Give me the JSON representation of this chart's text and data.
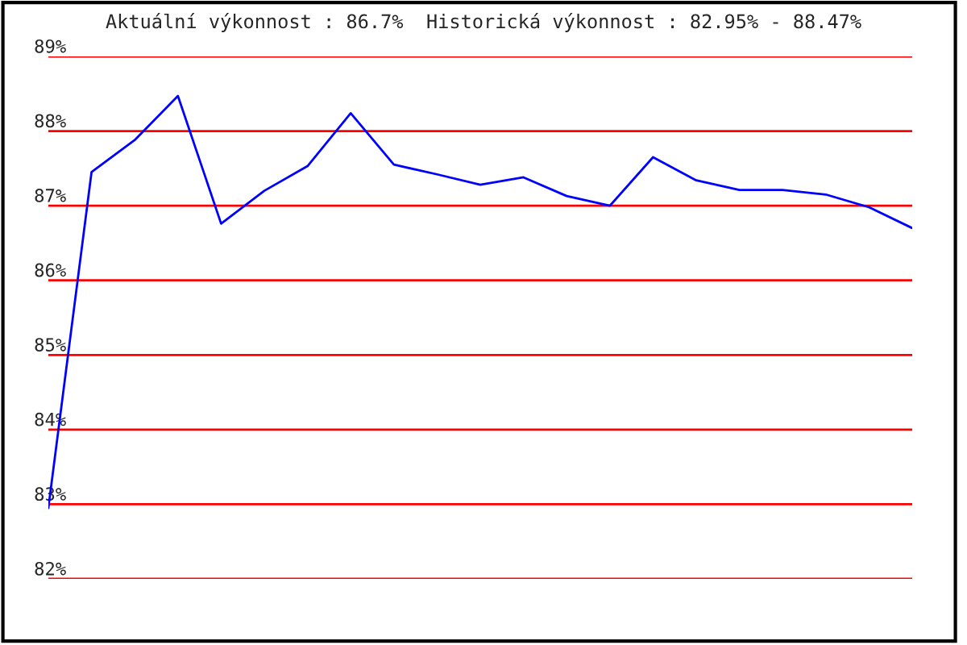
{
  "chart_data": {
    "type": "line",
    "title": "Aktuální výkonnost : 86.7%  Historická výkonnost : 82.95% - 88.47%",
    "categories": [
      null,
      null,
      null,
      null,
      null,
      null,
      null,
      null,
      null,
      null,
      null,
      null,
      null,
      null,
      null,
      null,
      null,
      null,
      null,
      null,
      null
    ],
    "series": [
      {
        "color": "#0000ff",
        "values": [
          82.95,
          87.45,
          87.88,
          88.47,
          86.76,
          87.2,
          87.53,
          88.24,
          87.55,
          87.42,
          87.28,
          87.38,
          87.13,
          87.0,
          87.65,
          87.34,
          87.21,
          87.21,
          87.15,
          86.98,
          86.7
        ]
      }
    ],
    "ylim": [
      82,
      89
    ],
    "yticks": [
      {
        "value": 82,
        "label": "82%"
      },
      {
        "value": 83,
        "label": "83%"
      },
      {
        "value": 84,
        "label": "84%"
      },
      {
        "value": 85,
        "label": "85%"
      },
      {
        "value": 86,
        "label": "86%"
      },
      {
        "value": 87,
        "label": "87%"
      },
      {
        "value": 88,
        "label": "88%"
      },
      {
        "value": 89,
        "label": "89%"
      }
    ],
    "grid": "y",
    "tick_labels": "y",
    "legend": false,
    "marker": "none",
    "line_style": "solid"
  }
}
